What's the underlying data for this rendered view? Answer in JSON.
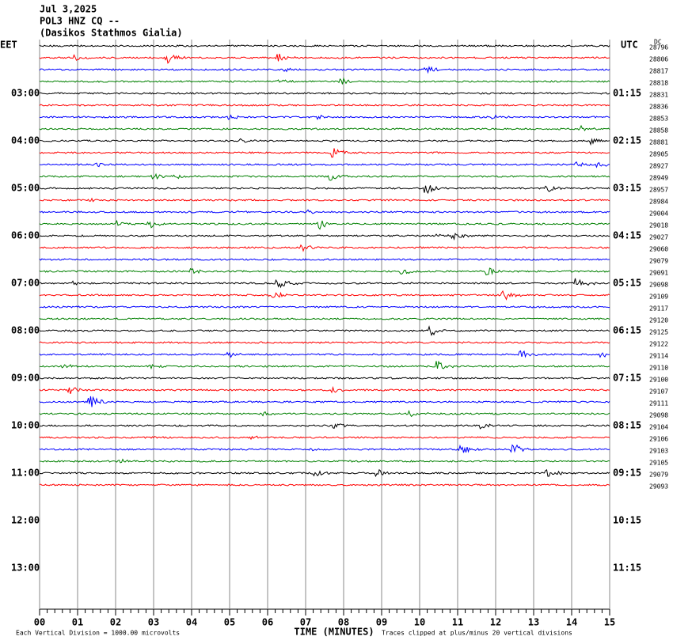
{
  "chart_data": {
    "type": "helicorder",
    "title_lines": [
      "Jul 3,2025",
      "POL3 HNZ CQ --",
      "(Dasikos Stathmos Gialia)"
    ],
    "left_axis_label": "EET",
    "right_axis_label": "UTC",
    "dc_label": "DC",
    "left_labels": [
      "03:00",
      "04:00",
      "05:00",
      "06:00",
      "07:00",
      "08:00",
      "09:00",
      "10:00",
      "11:00",
      "12:00",
      "13:00"
    ],
    "right_labels": [
      "01:15",
      "02:15",
      "03:15",
      "04:15",
      "05:15",
      "06:15",
      "07:15",
      "08:15",
      "09:15",
      "10:15",
      "11:15"
    ],
    "dc_values": [
      28796,
      28806,
      28817,
      28818,
      28831,
      28836,
      28853,
      28858,
      28881,
      28905,
      28927,
      28949,
      28957,
      28984,
      29004,
      29018,
      29027,
      29060,
      29079,
      29091,
      29098,
      29109,
      29117,
      29120,
      29125,
      29122,
      29114,
      29110,
      29100,
      29107,
      29111,
      29098,
      29104,
      29106,
      29103,
      29105,
      29079,
      29093
    ],
    "trace_colors": [
      "#000000",
      "#ff0000",
      "#0000ff",
      "#008000"
    ],
    "xlabel": "TIME (MINUTES)",
    "xlim": [
      0,
      15
    ],
    "xticks": [
      {
        "value": 0,
        "label": "00"
      },
      {
        "value": 1,
        "label": "01"
      },
      {
        "value": 2,
        "label": "02"
      },
      {
        "value": 3,
        "label": "03"
      },
      {
        "value": 4,
        "label": "04"
      },
      {
        "value": 5,
        "label": "05"
      },
      {
        "value": 6,
        "label": "06"
      },
      {
        "value": 7,
        "label": "07"
      },
      {
        "value": 8,
        "label": "08"
      },
      {
        "value": 9,
        "label": "09"
      },
      10,
      11,
      12,
      13,
      14,
      15
    ],
    "footer_left": "Each Vertical Division = 1000.00 microvolts",
    "footer_right": "Traces clipped at plus/minus 20 vertical divisions"
  }
}
